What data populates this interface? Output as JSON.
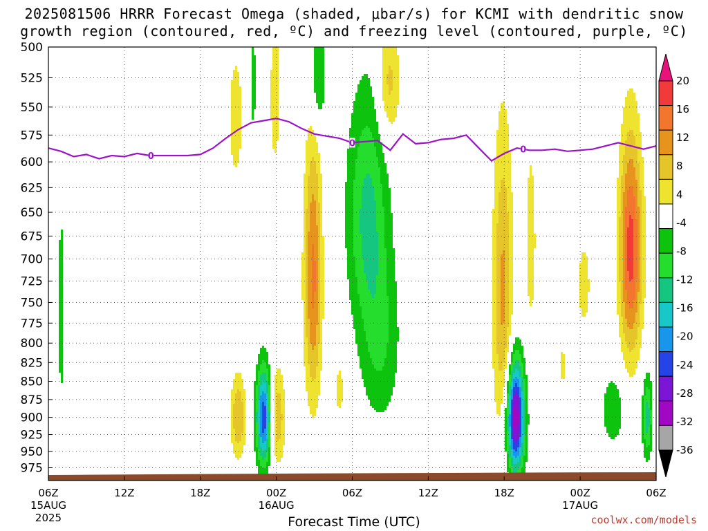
{
  "title_line1": "2025081506 HRRR Forecast Omega (shaded, μbar/s) for KCMI with dendritic snow",
  "title_line2": "growth region (contoured, red, ºC) and freezing level (contoured, purple, ºC)",
  "credit": "coolwx.com/models",
  "chart_data": {
    "type": "heatmap",
    "xlabel": "Forecast Time (UTC)",
    "ylabel": "",
    "y_ticks": [
      500,
      525,
      550,
      575,
      600,
      625,
      650,
      675,
      700,
      725,
      750,
      775,
      800,
      825,
      850,
      875,
      900,
      925,
      950,
      975
    ],
    "y_range_hpa": [
      500,
      995
    ],
    "y_scale": "log-pressure",
    "x_range_hours": [
      0,
      48
    ],
    "x_ticks": [
      {
        "h": 0,
        "label": "06Z",
        "sub": "15AUG",
        "sub2": "2025"
      },
      {
        "h": 6,
        "label": "12Z"
      },
      {
        "h": 12,
        "label": "18Z"
      },
      {
        "h": 18,
        "label": "00Z",
        "sub": "16AUG"
      },
      {
        "h": 24,
        "label": "06Z"
      },
      {
        "h": 30,
        "label": "12Z"
      },
      {
        "h": 36,
        "label": "18Z"
      },
      {
        "h": 42,
        "label": "00Z",
        "sub": "17AUG"
      },
      {
        "h": 48,
        "label": "06Z"
      }
    ],
    "grid": true,
    "colorbar": {
      "labels": [
        "20",
        "16",
        "12",
        "8",
        "4",
        "-4",
        "-8",
        "-12",
        "-16",
        "-20",
        "-24",
        "-28",
        "-32",
        "-36"
      ],
      "colors": [
        "#e8137a",
        "#f23a3a",
        "#f2762e",
        "#e7941f",
        "#e6c52a",
        "#eee32e",
        "#ffffff",
        "#0ec30e",
        "#24dd2d",
        "#14c67f",
        "#18c7c7",
        "#1896ec",
        "#2644e6",
        "#7c16d6",
        "#a108c4",
        "#a6a6a6",
        "#000000"
      ]
    },
    "levels": [
      {
        "omega": 4,
        "color": "#eee32e"
      },
      {
        "omega": 8,
        "color": "#e6c52a"
      },
      {
        "omega": 12,
        "color": "#e7941f"
      },
      {
        "omega": 16,
        "color": "#f2762e"
      },
      {
        "omega": 20,
        "color": "#f23a3a"
      },
      {
        "omega": -4,
        "color": "#0ec30e"
      },
      {
        "omega": -8,
        "color": "#24dd2d"
      },
      {
        "omega": -12,
        "color": "#14c67f"
      },
      {
        "omega": -16,
        "color": "#18c7c7"
      },
      {
        "omega": -20,
        "color": "#1896ec"
      },
      {
        "omega": -24,
        "color": "#2644e6"
      },
      {
        "omega": -28,
        "color": "#7c16d6"
      },
      {
        "omega": -32,
        "color": "#a108c4"
      },
      {
        "omega": -36,
        "color": "#a6a6a6"
      }
    ],
    "features": [
      {
        "kind": "down",
        "h": 14.8,
        "p": 560,
        "dh": 0.7,
        "dp": 70,
        "peak": 6
      },
      {
        "kind": "down",
        "h": 17.9,
        "p": 540,
        "dh": 0.5,
        "dp": 80,
        "peak": 6
      },
      {
        "kind": "up",
        "h": 16.2,
        "p": 530,
        "dh": 0.2,
        "dp": 60,
        "peak": -6
      },
      {
        "kind": "up",
        "h": 21.3,
        "p": 525,
        "dh": 0.6,
        "dp": 45,
        "peak": -10
      },
      {
        "kind": "down",
        "h": 26.9,
        "p": 530,
        "dh": 0.9,
        "dp": 50,
        "peak": 10
      },
      {
        "kind": "up",
        "h": 25.2,
        "p": 650,
        "dh": 1.6,
        "dp": 120,
        "peak": -13
      },
      {
        "kind": "up",
        "h": 26.2,
        "p": 800,
        "dh": 1.6,
        "dp": 110,
        "peak": -8
      },
      {
        "kind": "down",
        "h": 20.9,
        "p": 720,
        "dh": 0.7,
        "dp": 150,
        "peak": 17
      },
      {
        "kind": "down",
        "h": 18.1,
        "p": 900,
        "dh": 0.6,
        "dp": 70,
        "peak": 11
      },
      {
        "kind": "up",
        "h": 17.0,
        "p": 900,
        "dh": 0.6,
        "dp": 70,
        "peak": -27
      },
      {
        "kind": "down",
        "h": 15.0,
        "p": 900,
        "dh": 0.6,
        "dp": 60,
        "peak": 12
      },
      {
        "kind": "down",
        "h": 23.0,
        "p": 860,
        "dh": 0.6,
        "dp": 60,
        "peak": 5
      },
      {
        "kind": "up",
        "h": 1.0,
        "p": 760,
        "dh": 0.25,
        "dp": 160,
        "peak": -6
      },
      {
        "kind": "up",
        "h": 36.9,
        "p": 900,
        "dh": 0.7,
        "dp": 80,
        "peak": -36
      },
      {
        "kind": "down",
        "h": 35.9,
        "p": 740,
        "dh": 0.8,
        "dp": 180,
        "peak": 13
      },
      {
        "kind": "down",
        "h": 38.1,
        "p": 680,
        "dh": 0.5,
        "dp": 120,
        "peak": 6
      },
      {
        "kind": "down",
        "h": 40.6,
        "p": 830,
        "dh": 0.4,
        "dp": 40,
        "peak": 5
      },
      {
        "kind": "down",
        "h": 46.0,
        "p": 690,
        "dh": 0.9,
        "dp": 120,
        "peak": 22
      },
      {
        "kind": "up",
        "h": 44.6,
        "p": 890,
        "dh": 0.9,
        "dp": 50,
        "peak": -8
      },
      {
        "kind": "up",
        "h": 47.3,
        "p": 900,
        "dh": 0.4,
        "dp": 60,
        "peak": -14
      },
      {
        "kind": "down",
        "h": 42.3,
        "p": 730,
        "dh": 0.6,
        "dp": 60,
        "peak": 6
      }
    ],
    "freezing_level": {
      "label": "0",
      "label_h": [
        8.1,
        24.0,
        37.5
      ],
      "h": [
        0,
        1,
        2,
        3,
        4,
        5,
        6,
        7,
        8,
        9,
        10,
        11,
        12,
        13,
        14,
        15,
        16,
        17,
        18,
        19,
        20,
        21,
        22,
        23,
        24,
        25,
        26,
        27,
        28,
        29,
        30,
        31,
        32,
        33,
        34,
        35,
        36,
        37,
        38,
        39,
        40,
        41,
        42,
        43,
        44,
        45,
        46,
        47,
        48
      ],
      "p": [
        587,
        590,
        595,
        593,
        597,
        594,
        595,
        592,
        594,
        594,
        594,
        594,
        593,
        587,
        578,
        570,
        564,
        562,
        560,
        563,
        569,
        574,
        576,
        578,
        582,
        581,
        580,
        589,
        574,
        583,
        582,
        579,
        578,
        575,
        587,
        599,
        592,
        587,
        589,
        589,
        588,
        590,
        589,
        588,
        585,
        582,
        585,
        588,
        585
      ]
    },
    "ground": true
  }
}
